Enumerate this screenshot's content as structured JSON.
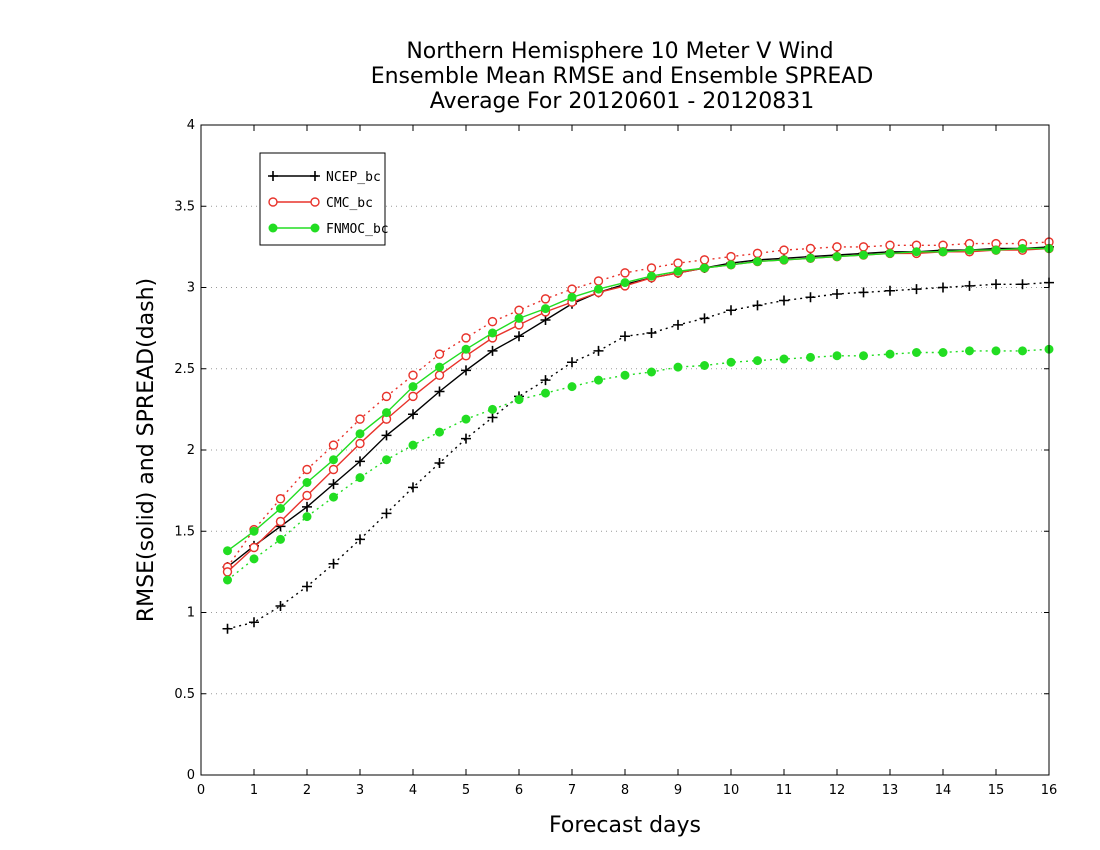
{
  "chart_data": {
    "type": "line",
    "title_lines": [
      "Northern Hemisphere 10 Meter V Wind",
      "Ensemble Mean RMSE and Ensemble SPREAD",
      "Average For 20120601 - 20120831"
    ],
    "xlabel": "Forecast days",
    "ylabel": "RMSE(solid) and SPREAD(dash)",
    "xlim": [
      0,
      16
    ],
    "ylim": [
      0,
      4
    ],
    "x_ticks": [
      "0",
      "1",
      "2",
      "3",
      "4",
      "5",
      "6",
      "7",
      "8",
      "9",
      "10",
      "11",
      "12",
      "13",
      "14",
      "15",
      "16"
    ],
    "y_ticks": [
      "0",
      "0.5",
      "1",
      "1.5",
      "2",
      "2.5",
      "3",
      "3.5",
      "4"
    ],
    "grid": "horizontal-dotted",
    "legend_position": "top-left",
    "x": [
      0.5,
      1,
      1.5,
      2,
      2.5,
      3,
      3.5,
      4,
      4.5,
      5,
      5.5,
      6,
      6.5,
      7,
      7.5,
      8,
      8.5,
      9,
      9.5,
      10,
      10.5,
      11,
      11.5,
      12,
      12.5,
      13,
      13.5,
      14,
      14.5,
      15,
      15.5,
      16
    ],
    "series": [
      {
        "name": "NCEP_bc",
        "color": "#000000",
        "marker": "plus",
        "rmse": [
          1.28,
          1.41,
          1.53,
          1.65,
          1.79,
          1.93,
          2.09,
          2.22,
          2.36,
          2.49,
          2.61,
          2.7,
          2.8,
          2.9,
          2.97,
          3.02,
          3.06,
          3.09,
          3.12,
          3.15,
          3.17,
          3.18,
          3.19,
          3.2,
          3.21,
          3.22,
          3.22,
          3.23,
          3.23,
          3.24,
          3.24,
          3.25
        ],
        "spread": [
          0.9,
          0.94,
          1.04,
          1.16,
          1.3,
          1.45,
          1.61,
          1.77,
          1.92,
          2.07,
          2.2,
          2.33,
          2.43,
          2.54,
          2.61,
          2.7,
          2.72,
          2.77,
          2.81,
          2.86,
          2.89,
          2.92,
          2.94,
          2.96,
          2.97,
          2.98,
          2.99,
          3.0,
          3.01,
          3.02,
          3.02,
          3.03
        ]
      },
      {
        "name": "CMC_bc",
        "color": "#e8332b",
        "marker": "open-circle",
        "rmse": [
          1.25,
          1.4,
          1.56,
          1.72,
          1.88,
          2.04,
          2.19,
          2.33,
          2.46,
          2.58,
          2.69,
          2.77,
          2.85,
          2.91,
          2.97,
          3.01,
          3.06,
          3.09,
          3.12,
          3.14,
          3.16,
          3.17,
          3.18,
          3.19,
          3.2,
          3.21,
          3.21,
          3.22,
          3.22,
          3.23,
          3.23,
          3.24
        ],
        "spread": [
          1.28,
          1.51,
          1.7,
          1.88,
          2.03,
          2.19,
          2.33,
          2.46,
          2.59,
          2.69,
          2.79,
          2.86,
          2.93,
          2.99,
          3.04,
          3.09,
          3.12,
          3.15,
          3.17,
          3.19,
          3.21,
          3.23,
          3.24,
          3.25,
          3.25,
          3.26,
          3.26,
          3.26,
          3.27,
          3.27,
          3.27,
          3.28
        ]
      },
      {
        "name": "FNMOC_bc",
        "color": "#22dd22",
        "marker": "filled-circle",
        "rmse": [
          1.38,
          1.5,
          1.64,
          1.8,
          1.94,
          2.1,
          2.23,
          2.39,
          2.51,
          2.62,
          2.72,
          2.81,
          2.87,
          2.94,
          2.99,
          3.03,
          3.07,
          3.1,
          3.12,
          3.14,
          3.16,
          3.17,
          3.18,
          3.19,
          3.2,
          3.21,
          3.22,
          3.22,
          3.23,
          3.23,
          3.24,
          3.24
        ],
        "spread": [
          1.2,
          1.33,
          1.45,
          1.59,
          1.71,
          1.83,
          1.94,
          2.03,
          2.11,
          2.19,
          2.25,
          2.31,
          2.35,
          2.39,
          2.43,
          2.46,
          2.48,
          2.51,
          2.52,
          2.54,
          2.55,
          2.56,
          2.57,
          2.58,
          2.58,
          2.59,
          2.6,
          2.6,
          2.61,
          2.61,
          2.61,
          2.62
        ]
      }
    ]
  }
}
